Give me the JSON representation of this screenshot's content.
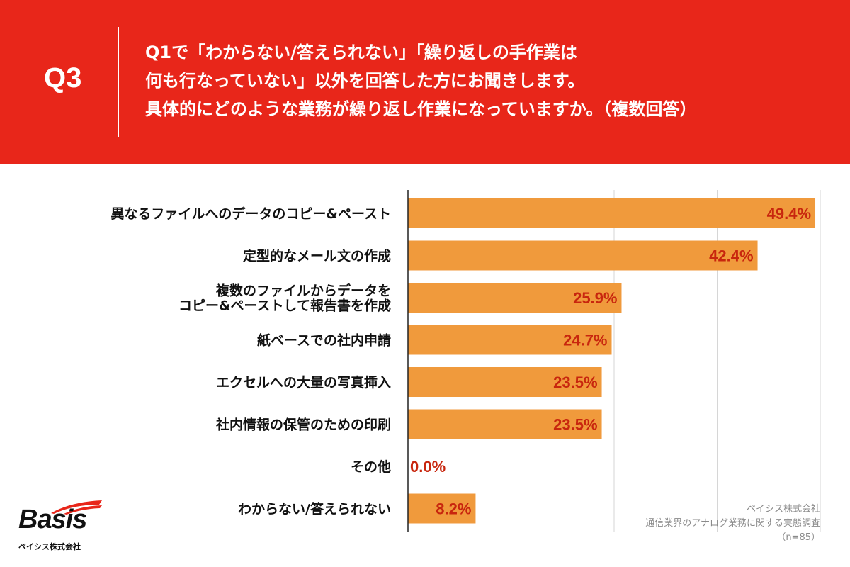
{
  "header": {
    "question_label": "Q3",
    "question_lines": [
      "Q1で「わからない/答えられない」「繰り返しの手作業は",
      "何も行なっていない」以外を回答した方にお聞きします。",
      "具体的にどのような業務が繰り返し作業になっていますか。（複数回答）"
    ]
  },
  "chart_data": {
    "type": "bar",
    "orientation": "horizontal",
    "categories": [
      [
        "異なるファイルへのデータのコピー&ペースト"
      ],
      [
        "定型的なメール文の作成"
      ],
      [
        "複数のファイルからデータを",
        "コピー&ペーストして報告書を作成"
      ],
      [
        "紙ベースでの社内申請"
      ],
      [
        "エクセルへの大量の写真挿入"
      ],
      [
        "社内情報の保管のための印刷"
      ],
      [
        "その他"
      ],
      [
        "わからない/答えられない"
      ]
    ],
    "values": [
      49.4,
      42.4,
      25.9,
      24.7,
      23.5,
      23.5,
      0.0,
      8.2
    ],
    "value_labels": [
      "49.4%",
      "42.4%",
      "25.9%",
      "24.7%",
      "23.5%",
      "23.5%",
      "0.0%",
      "8.2%"
    ],
    "xlim": [
      0,
      50
    ],
    "grid": true,
    "bar_color": "#F09A3C",
    "value_color": "#C8260E"
  },
  "source": {
    "company": "ベイシス株式会社",
    "survey": "通信業界のアナログ業務に関する実態調査",
    "sample": "（n=85）"
  },
  "logo": {
    "name": "Basis",
    "sub": "ベイシス株式会社"
  },
  "colors": {
    "background": "#E8261A",
    "panel": "#FFFFFF"
  }
}
